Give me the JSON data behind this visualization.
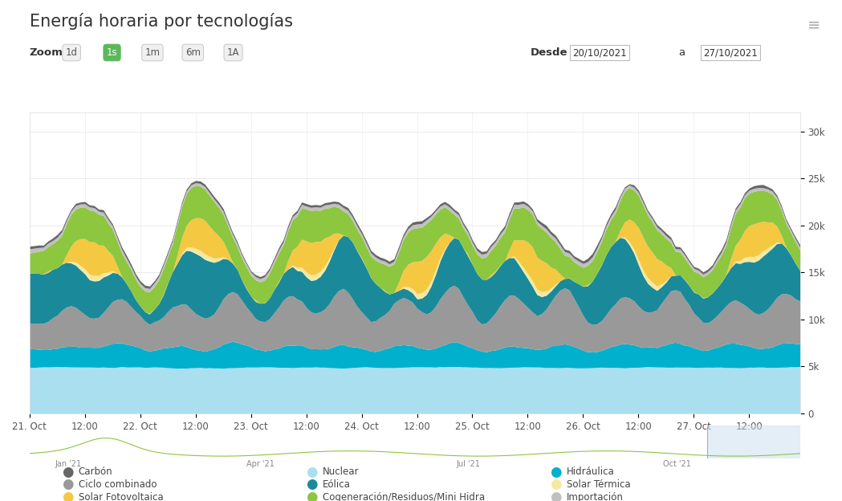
{
  "title": "Energía horaria por tecnologías",
  "zoom_label": "Zoom",
  "zoom_options": [
    "1d",
    "1s",
    "1m",
    "6m",
    "1A"
  ],
  "zoom_active": "1s",
  "desde_label": "Desde",
  "a_label": "a",
  "desde_date": "20/10/2021",
  "a_date": "27/10/2021",
  "x_tick_positions": [
    0,
    12,
    24,
    36,
    48,
    60,
    72,
    84,
    96,
    108,
    120,
    132,
    144,
    156
  ],
  "x_tick_labels": [
    "21. Oct",
    "12:00",
    "22. Oct",
    "12:00",
    "23. Oct",
    "12:00",
    "24. Oct",
    "12:00",
    "25. Oct",
    "12:00",
    "26. Oct",
    "12:00",
    "27. Oct",
    "12:00"
  ],
  "y_ticks": [
    0,
    5000,
    10000,
    15000,
    20000,
    25000,
    30000
  ],
  "y_tick_labels": [
    "0",
    "5k",
    "10k",
    "15k",
    "20k",
    "25k",
    "30k"
  ],
  "ylim": [
    0,
    32000
  ],
  "background_color": "#ffffff",
  "chart_bg": "#ffffff",
  "grid_color": "#e8e8e8",
  "legend_items_col1": [
    {
      "label": "Carbón",
      "color": "#666666"
    },
    {
      "label": "Ciclo combinado",
      "color": "#999999"
    },
    {
      "label": "Solar Fotovoltaica",
      "color": "#f5c842"
    }
  ],
  "legend_items_col2": [
    {
      "label": "Nuclear",
      "color": "#aadff0"
    },
    {
      "label": "Eólica",
      "color": "#1a8a9a"
    },
    {
      "label": "Cogeneración/Residuos/Mini Hidra",
      "color": "#8dc63f"
    }
  ],
  "legend_items_col3": [
    {
      "label": "Hidráulica",
      "color": "#00b0cc"
    },
    {
      "label": "Solar Térmica",
      "color": "#f5e8a0"
    },
    {
      "label": "Importación",
      "color": "#c0c0c0"
    }
  ],
  "layer_colors": [
    "#aadff0",
    "#00b0cc",
    "#999999",
    "#1a8a9a",
    "#f5e8a0",
    "#f5c842",
    "#8dc63f",
    "#c0c0c0",
    "#666666"
  ],
  "layer_names": [
    "Nuclear",
    "Hidráulica",
    "Ciclo combinado",
    "Eólica",
    "Solar Térmica",
    "Solar Fotovoltaica",
    "Cogeneración",
    "Importación",
    "Carbón"
  ]
}
